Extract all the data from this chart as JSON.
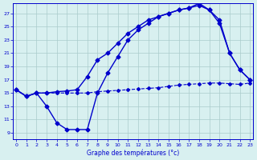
{
  "title": "",
  "xlabel": "Graphe des températures (°c)",
  "ylabel": "",
  "bg_color": "#d8f0f0",
  "line_color": "#0000cc",
  "grid_color": "#aacccc",
  "x_ticks": [
    0,
    1,
    2,
    3,
    4,
    5,
    6,
    7,
    8,
    9,
    10,
    11,
    12,
    13,
    14,
    15,
    16,
    17,
    18,
    19,
    20,
    21,
    22,
    23
  ],
  "y_ticks": [
    9,
    11,
    13,
    15,
    17,
    19,
    21,
    23,
    25,
    27
  ],
  "ylim": [
    8.0,
    28.5
  ],
  "xlim": [
    -0.3,
    23.3
  ],
  "series": [
    {
      "x": [
        0,
        1,
        2,
        3,
        4,
        5,
        6,
        7,
        8,
        9,
        10,
        11,
        12,
        13,
        14,
        15,
        16,
        17,
        18,
        19,
        20,
        21,
        22,
        23
      ],
      "y": [
        15.5,
        14.5,
        15.0,
        15.0,
        15.0,
        15.0,
        15.0,
        15.0,
        15.2,
        15.3,
        15.4,
        15.5,
        15.6,
        15.7,
        15.8,
        16.0,
        16.2,
        16.3,
        16.4,
        16.5,
        16.5,
        16.4,
        16.3,
        16.5
      ],
      "marker": "D",
      "markersize": 2.0,
      "linewidth": 0.8,
      "linestyle": "--"
    },
    {
      "x": [
        0,
        1,
        2,
        3,
        4,
        5,
        6,
        7,
        8,
        9,
        10,
        11,
        12,
        13,
        14,
        15,
        16,
        17,
        18,
        19,
        20,
        21,
        22,
        23
      ],
      "y": [
        15.5,
        14.5,
        15.0,
        13.0,
        10.5,
        9.5,
        9.5,
        9.5,
        15.0,
        18.0,
        20.5,
        23.0,
        24.5,
        25.5,
        26.5,
        27.0,
        27.5,
        27.8,
        28.5,
        27.5,
        26.0,
        21.0,
        18.5,
        17.0
      ],
      "marker": "D",
      "markersize": 2.5,
      "linewidth": 1.0,
      "linestyle": "-"
    },
    {
      "x": [
        0,
        1,
        2,
        3,
        4,
        5,
        6,
        7,
        8,
        9,
        10,
        11,
        12,
        13,
        14,
        15,
        16,
        17,
        18,
        19,
        20,
        21,
        22,
        23
      ],
      "y": [
        15.5,
        14.5,
        15.0,
        15.0,
        15.2,
        15.3,
        15.5,
        17.5,
        20.0,
        21.0,
        22.5,
        24.0,
        25.0,
        26.0,
        26.5,
        27.0,
        27.5,
        27.8,
        28.2,
        27.5,
        25.5,
        21.0,
        18.5,
        17.0
      ],
      "marker": "D",
      "markersize": 2.5,
      "linewidth": 1.0,
      "linestyle": "-"
    }
  ]
}
